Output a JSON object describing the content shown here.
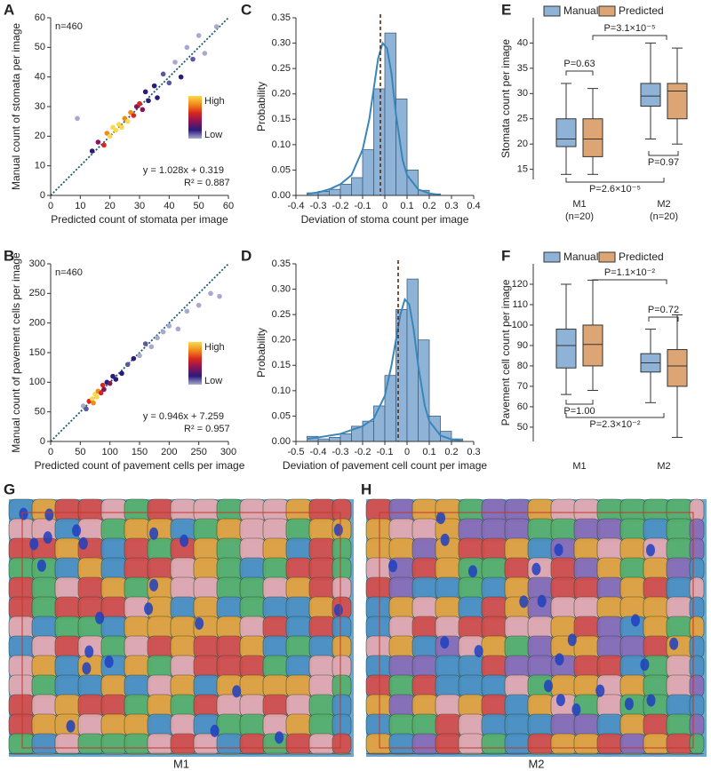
{
  "chart_data": [
    {
      "type": "scatter",
      "panel": "A",
      "annotation": "n=460",
      "fit_equation": "y = 1.028x + 0.319",
      "r_squared": "R² = 0.887",
      "colorbar_labels": [
        "High",
        "Low"
      ],
      "colorbar_colors": [
        "#fcd94a",
        "#f08a1c",
        "#d8261f",
        "#8a1458",
        "#2a1a7a",
        "#a7a9cf"
      ],
      "x_label": "Predicted count of stomata per image",
      "y_label": "Manual count of stomata per image",
      "xlim": [
        0,
        60
      ],
      "ylim": [
        0,
        60
      ],
      "xticks": [
        0,
        10,
        20,
        30,
        40,
        50,
        60
      ],
      "yticks": [
        0,
        10,
        20,
        30,
        40,
        50,
        60
      ],
      "x": [
        9,
        14,
        16,
        18,
        19,
        20,
        21,
        22,
        23,
        24,
        25,
        26,
        27,
        28,
        29,
        30,
        31,
        32,
        33,
        35,
        36,
        38,
        40,
        42,
        44,
        46,
        48,
        50,
        52,
        56
      ],
      "values": [
        26,
        15,
        18,
        17,
        21,
        20,
        23,
        22,
        24,
        23,
        26,
        25,
        28,
        27,
        30,
        31,
        29,
        35,
        32,
        37,
        33,
        41,
        38,
        45,
        40,
        50,
        46,
        54,
        48,
        57
      ],
      "colors": [
        "#a7a9cf",
        "#2a1a7a",
        "#8a1458",
        "#d8261f",
        "#f08a1c",
        "#fcd94a",
        "#fcd94a",
        "#fcd94a",
        "#fcd94a",
        "#fcd94a",
        "#f08a1c",
        "#fcd94a",
        "#f08a1c",
        "#d8261f",
        "#8a1458",
        "#d8261f",
        "#8a1458",
        "#2a1a7a",
        "#2a1a7a",
        "#2a1a7a",
        "#2a1a7a",
        "#5b5a9e",
        "#5b5a9e",
        "#a7a9cf",
        "#2a1a7a",
        "#a7a9cf",
        "#5b5a9e",
        "#a7a9cf",
        "#a7a9cf",
        "#a7a9cf"
      ]
    },
    {
      "type": "scatter",
      "panel": "B",
      "annotation": "n=460",
      "fit_equation": "y = 0.946x + 7.259",
      "r_squared": "R² = 0.957",
      "colorbar_labels": [
        "High",
        "Low"
      ],
      "colorbar_colors": [
        "#fcd94a",
        "#f08a1c",
        "#d8261f",
        "#8a1458",
        "#2a1a7a",
        "#a7a9cf"
      ],
      "x_label": "Predicted count of pavement cells per image",
      "y_label": "Manual count of pavement cells per image",
      "xlim": [
        0,
        300
      ],
      "ylim": [
        0,
        300
      ],
      "xticks": [
        0,
        50,
        100,
        150,
        200,
        250,
        300
      ],
      "yticks": [
        0,
        50,
        100,
        150,
        200,
        250,
        300
      ],
      "x": [
        55,
        60,
        65,
        70,
        72,
        75,
        78,
        80,
        85,
        88,
        90,
        95,
        100,
        105,
        110,
        120,
        130,
        140,
        150,
        160,
        170,
        180,
        190,
        200,
        215,
        230,
        250,
        270,
        285
      ],
      "values": [
        60,
        55,
        68,
        72,
        65,
        80,
        75,
        85,
        82,
        95,
        88,
        100,
        98,
        110,
        105,
        115,
        130,
        140,
        145,
        165,
        160,
        175,
        185,
        195,
        190,
        220,
        230,
        250,
        245
      ],
      "colors": [
        "#a7a9cf",
        "#5b5a9e",
        "#d8261f",
        "#fcd94a",
        "#f08a1c",
        "#fcd94a",
        "#fcd94a",
        "#f08a1c",
        "#d8261f",
        "#d8261f",
        "#8a1458",
        "#2a1a7a",
        "#8a1458",
        "#2a1a7a",
        "#2a1a7a",
        "#2a1a7a",
        "#5b5a9e",
        "#2a1a7a",
        "#a7a9cf",
        "#5b5a9e",
        "#a7a9cf",
        "#a7a9cf",
        "#a7a9cf",
        "#a7a9cf",
        "#a7a9cf",
        "#a7a9cf",
        "#a7a9cf",
        "#a7a9cf",
        "#a7a9cf"
      ]
    },
    {
      "type": "histogram",
      "panel": "C",
      "x_label": "Deviation of stoma count per image",
      "y_label": "Probability",
      "color": "#8fb3d6",
      "curve_color": "#3a86b8",
      "xlim": [
        -0.4,
        0.4
      ],
      "ylim": [
        0,
        0.35
      ],
      "xticks": [
        -0.4,
        -0.3,
        -0.2,
        -0.1,
        0,
        0.1,
        0.2,
        0.3,
        0.4
      ],
      "yticks": [
        {
          "value": 0,
          "label": "0.00"
        },
        0.05,
        {
          "value": 0.1,
          "label": "0.10"
        },
        0.15,
        {
          "value": 0.2,
          "label": "0.20"
        },
        0.25,
        {
          "value": 0.3,
          "label": "0.30"
        },
        0.35
      ],
      "bins": [
        -0.35,
        -0.3,
        -0.25,
        -0.2,
        -0.15,
        -0.1,
        -0.05,
        0,
        0.05,
        0.1,
        0.15,
        0.2,
        0.25
      ],
      "values": [
        0.005,
        0.008,
        0.012,
        0.022,
        0.035,
        0.09,
        0.21,
        0.32,
        0.19,
        0.05,
        0.01,
        0.003
      ],
      "mean_line": -0.02,
      "curve": {
        "x": [
          -0.35,
          -0.3,
          -0.25,
          -0.2,
          -0.15,
          -0.1,
          -0.07,
          -0.05,
          -0.03,
          -0.01,
          0.01,
          0.03,
          0.05,
          0.08,
          0.1,
          0.15,
          0.2,
          0.25
        ],
        "values": [
          0.003,
          0.006,
          0.012,
          0.022,
          0.04,
          0.09,
          0.15,
          0.21,
          0.27,
          0.3,
          0.29,
          0.24,
          0.16,
          0.07,
          0.04,
          0.012,
          0.004,
          0.001
        ]
      }
    },
    {
      "type": "histogram",
      "panel": "D",
      "x_label": "Deviation of pavement cell count per image",
      "y_label": "Probability",
      "color": "#8fb3d6",
      "curve_color": "#3a86b8",
      "xlim": [
        -0.5,
        0.3
      ],
      "ylim": [
        0,
        0.35
      ],
      "xticks": [
        -0.5,
        -0.4,
        -0.3,
        -0.2,
        -0.1,
        0,
        0.1,
        0.2,
        0.3
      ],
      "yticks": [
        {
          "value": 0,
          "label": "0.00"
        },
        0.05,
        {
          "value": 0.1,
          "label": "0.10"
        },
        0.15,
        {
          "value": 0.2,
          "label": "0.20"
        },
        0.25,
        {
          "value": 0.3,
          "label": "0.30"
        },
        0.35
      ],
      "bins": [
        -0.45,
        -0.4,
        -0.35,
        -0.3,
        -0.25,
        -0.2,
        -0.15,
        -0.1,
        -0.05,
        0,
        0.05,
        0.1,
        0.15,
        0.2,
        0.25
      ],
      "values": [
        0.01,
        0.005,
        0.008,
        0.015,
        0.03,
        0.04,
        0.07,
        0.13,
        0.26,
        0.32,
        0.2,
        0.05,
        0.02,
        0.005
      ],
      "mean_line": -0.04,
      "curve": {
        "x": [
          -0.45,
          -0.4,
          -0.3,
          -0.2,
          -0.15,
          -0.1,
          -0.07,
          -0.05,
          -0.03,
          -0.01,
          0.01,
          0.03,
          0.05,
          0.08,
          0.1,
          0.15,
          0.2,
          0.25
        ],
        "values": [
          0.005,
          0.008,
          0.015,
          0.03,
          0.045,
          0.09,
          0.15,
          0.2,
          0.25,
          0.28,
          0.27,
          0.22,
          0.15,
          0.07,
          0.04,
          0.012,
          0.004,
          0.001
        ]
      }
    },
    {
      "type": "box",
      "panel": "E",
      "y_label": "Stomata count per image",
      "ylim": [
        13,
        45
      ],
      "yticks": [
        15,
        20,
        25,
        30,
        35,
        40
      ],
      "categories": [
        "M1",
        "M2"
      ],
      "category_notes": [
        "(n=20)",
        "(n=20)"
      ],
      "series": [
        {
          "name": "Manual",
          "color": "#8fb3d6",
          "min": [
            14,
            21
          ],
          "q1": [
            19.5,
            27.5
          ],
          "median": [
            21,
            29.5
          ],
          "q3": [
            25,
            32
          ],
          "max": [
            32,
            40
          ]
        },
        {
          "name": "Predicted",
          "color": "#dda574",
          "min": [
            14,
            20
          ],
          "q1": [
            17.5,
            25
          ],
          "median": [
            21,
            30.5
          ],
          "q3": [
            25,
            32
          ],
          "max": [
            31,
            39
          ]
        }
      ],
      "annotations": [
        "P=0.63",
        "P=3.1×10⁻⁵",
        "P=0.97",
        "P=2.6×10⁻⁵"
      ]
    },
    {
      "type": "box",
      "panel": "F",
      "y_label": "Pavement cell count per image",
      "ylim": [
        43,
        130
      ],
      "yticks": [
        50,
        60,
        70,
        80,
        90,
        100,
        110,
        120
      ],
      "categories": [
        "M1",
        "M2"
      ],
      "series": [
        {
          "name": "Manual",
          "color": "#8fb3d6",
          "min": [
            66,
            62
          ],
          "q1": [
            79,
            77
          ],
          "median": [
            90,
            81.5
          ],
          "q3": [
            98,
            86
          ],
          "max": [
            120,
            98
          ]
        },
        {
          "name": "Predicted",
          "color": "#dda574",
          "min": [
            68,
            45
          ],
          "q1": [
            80,
            70
          ],
          "median": [
            90.5,
            80
          ],
          "q3": [
            100,
            88
          ],
          "max": [
            122,
            105
          ]
        }
      ],
      "annotations": [
        "P=1.1×10⁻²",
        "P=0.72",
        "P=1.00",
        "P=2.3×10⁻²"
      ]
    }
  ],
  "images": [
    {
      "panel": "G",
      "caption": "M1"
    },
    {
      "panel": "H",
      "caption": "M2"
    }
  ]
}
